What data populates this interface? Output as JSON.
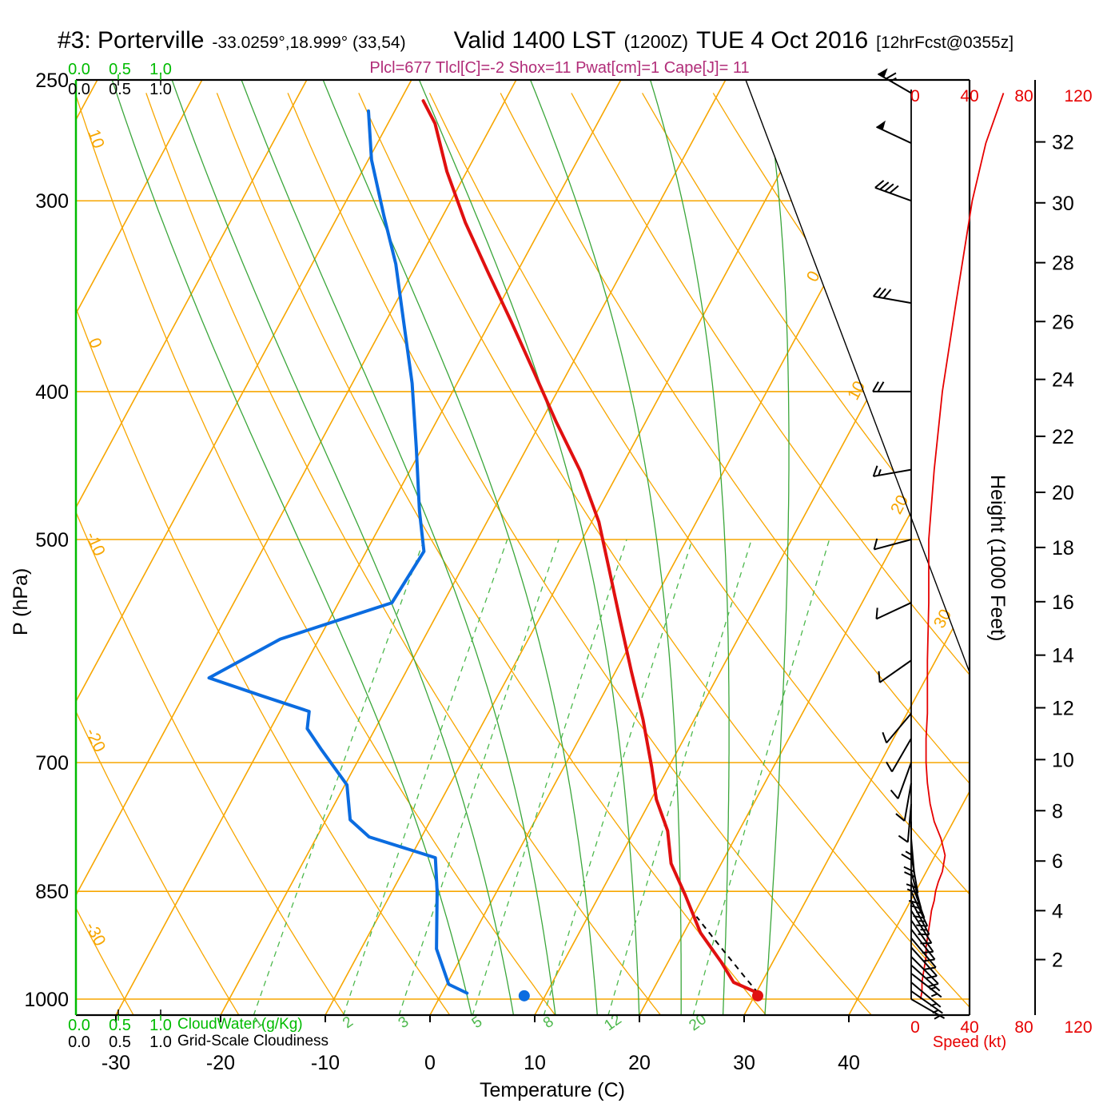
{
  "header": {
    "station": "#3: Porterville",
    "coords": "-33.0259°,18.999° (33,54)",
    "valid": "Valid 1400 LST",
    "zulu": "(1200Z)",
    "date": "TUE 4 Oct 2016",
    "fcst": "[12hrFcst@0355z]",
    "stats": "Plcl=677 Tlcl[C]=-2 Shox=11 Pwat[cm]=1 Cape[J]= 11"
  },
  "axes": {
    "pressure": {
      "title": "P (hPa)",
      "ticks": [
        250,
        300,
        400,
        500,
        700,
        850,
        1000
      ]
    },
    "temperature": {
      "title": "Temperature (C)",
      "ticks": [
        -30,
        -20,
        -10,
        0,
        10,
        20,
        30,
        40
      ]
    },
    "height": {
      "title": "Height (1000 Feet)",
      "ticks": [
        2,
        4,
        6,
        8,
        10,
        12,
        14,
        16,
        18,
        20,
        22,
        24,
        26,
        28,
        30,
        32
      ]
    },
    "speed": {
      "title": "Speed (kt)",
      "ticks": [
        0,
        40,
        80,
        120
      ]
    },
    "cloudwater": {
      "title": "CloudWater (g/Kg)",
      "ticks": [
        "0.0",
        "0.5",
        "1.0"
      ]
    },
    "cloudiness": {
      "title": "Grid-Scale Cloudiness",
      "ticks": [
        "0.0",
        "0.5",
        "1.0"
      ]
    }
  },
  "chart_data": {
    "type": "skewt_log_p",
    "pressure_range": [
      250,
      1025
    ],
    "isobars": [
      300,
      400,
      500,
      700,
      850,
      1000
    ],
    "isotherm_range": [
      -100,
      40
    ],
    "isotherm_step": 10,
    "isotherm_labels": [
      0,
      10,
      20,
      30
    ],
    "dry_adiabat_range": [
      -40,
      110
    ],
    "dry_adiabat_step": 10,
    "dry_adiabat_labels": [
      10,
      0,
      -10,
      -20,
      -30
    ],
    "mixing_ratio_lines": [
      1,
      2,
      3,
      5,
      8,
      12,
      20
    ],
    "moist_adiabat_starts": [
      4,
      8,
      12,
      16,
      20,
      24,
      28,
      32
    ],
    "temperature_profile": [
      [
        991,
        30.2
      ],
      [
        975,
        27.3
      ],
      [
        946,
        25.1
      ],
      [
        905,
        21.6
      ],
      [
        855,
        18.2
      ],
      [
        815,
        15.2
      ],
      [
        776,
        13.2
      ],
      [
        740,
        10.5
      ],
      [
        705,
        8.4
      ],
      [
        656,
        5.1
      ],
      [
        610,
        1.5
      ],
      [
        566,
        -2.1
      ],
      [
        525,
        -5.7
      ],
      [
        487,
        -9.3
      ],
      [
        451,
        -13.7
      ],
      [
        419,
        -18.5
      ],
      [
        388,
        -23.3
      ],
      [
        360,
        -28.0
      ],
      [
        334,
        -32.8
      ],
      [
        310,
        -37.5
      ],
      [
        287,
        -41.9
      ],
      [
        267,
        -45.5
      ],
      [
        258,
        -47.8
      ]
    ],
    "dewpoint_profile": [
      [
        991,
        2.4
      ],
      [
        978,
        0.2
      ],
      [
        927,
        -2.8
      ],
      [
        850,
        -5.7
      ],
      [
        808,
        -7.6
      ],
      [
        783,
        -15.0
      ],
      [
        763,
        -17.7
      ],
      [
        724,
        -19.8
      ],
      [
        700,
        -22.5
      ],
      [
        687,
        -24.0
      ],
      [
        665,
        -26.5
      ],
      [
        648,
        -27.2
      ],
      [
        633,
        -32.5
      ],
      [
        616,
        -38.5
      ],
      [
        581,
        -33.7
      ],
      [
        550,
        -24.9
      ],
      [
        509,
        -24.5
      ],
      [
        479,
        -27.0
      ],
      [
        435,
        -30.6
      ],
      [
        395,
        -34.3
      ],
      [
        359,
        -38.4
      ],
      [
        330,
        -42.0
      ],
      [
        307,
        -45.6
      ],
      [
        282,
        -49.7
      ],
      [
        262,
        -52.5
      ]
    ],
    "parcel": {
      "p_start": 991,
      "t_start": 30.2,
      "p_end": 880,
      "p_lcl": 677,
      "t_lcl": -2
    },
    "surface_dots": {
      "temperature": [
        995,
        30.3
      ],
      "dewpoint": [
        995,
        8.0
      ]
    },
    "winds": [
      [
        1000,
        120,
        4
      ],
      [
        988,
        125,
        5
      ],
      [
        975,
        130,
        5
      ],
      [
        962,
        128,
        6
      ],
      [
        950,
        132,
        7
      ],
      [
        938,
        135,
        8
      ],
      [
        925,
        138,
        8
      ],
      [
        912,
        140,
        9
      ],
      [
        900,
        142,
        10
      ],
      [
        888,
        145,
        11
      ],
      [
        875,
        148,
        12
      ],
      [
        862,
        152,
        14
      ],
      [
        850,
        155,
        15
      ],
      [
        838,
        160,
        17
      ],
      [
        825,
        165,
        20
      ],
      [
        805,
        170,
        22
      ],
      [
        785,
        175,
        19
      ],
      [
        765,
        180,
        14
      ],
      [
        745,
        185,
        11
      ],
      [
        722,
        190,
        9
      ],
      [
        700,
        200,
        8
      ],
      [
        675,
        210,
        8
      ],
      [
        650,
        220,
        9
      ],
      [
        600,
        235,
        9
      ],
      [
        550,
        245,
        10
      ],
      [
        500,
        255,
        10
      ],
      [
        450,
        260,
        14
      ],
      [
        400,
        270,
        20
      ],
      [
        350,
        280,
        30
      ],
      [
        300,
        290,
        42
      ],
      [
        275,
        295,
        52
      ],
      [
        255,
        300,
        65
      ]
    ]
  },
  "colors": {
    "grid_orange": "#f7a600",
    "moist_green": "#3aa63a",
    "mixing_green": "#4cb84c",
    "cloudwater_green": "#00bb00",
    "temperature_red": "#e01010",
    "dewpoint_blue": "#0b6ce0",
    "speed_red": "#e60000",
    "stats_magenta": "#b12d79",
    "wind_black": "#000000"
  }
}
